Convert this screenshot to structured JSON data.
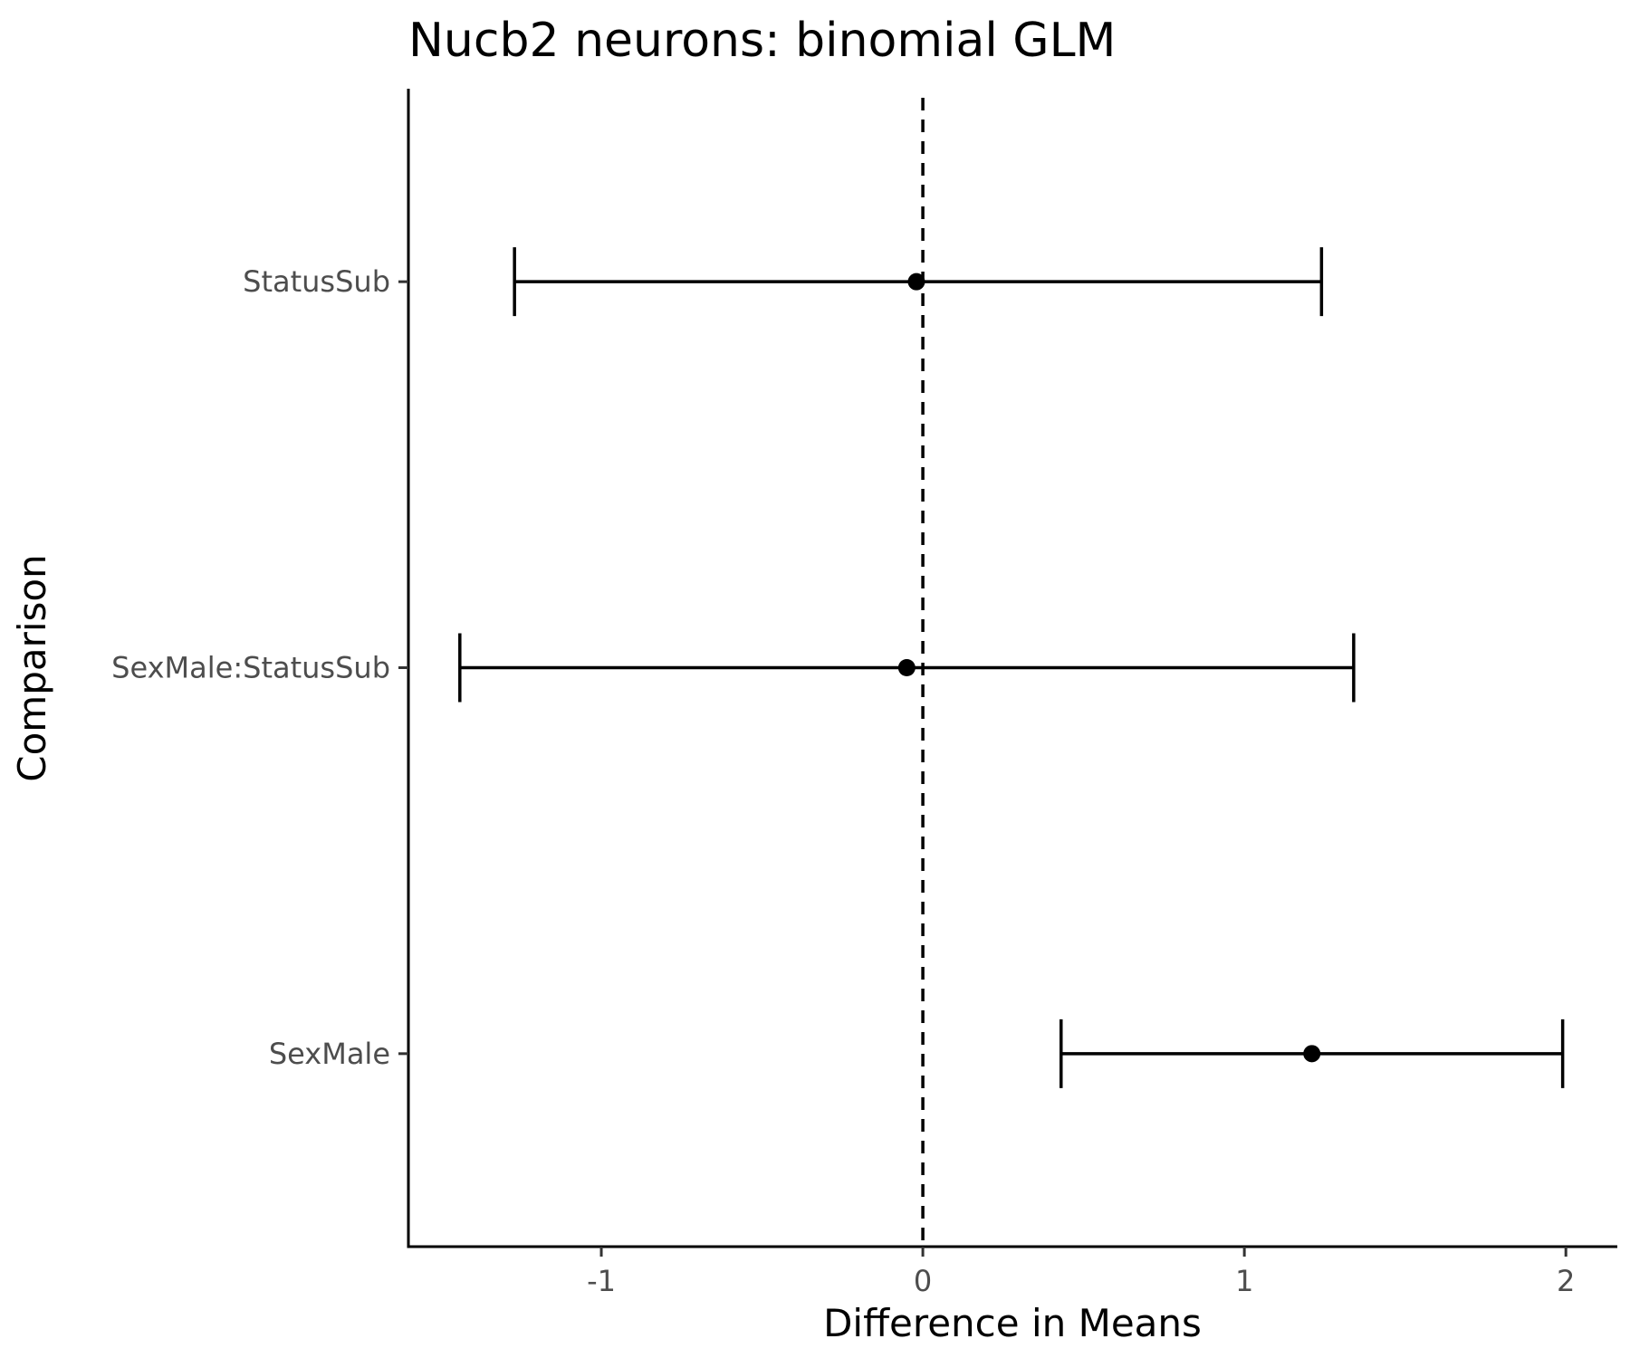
{
  "chart_data": {
    "type": "errorbar",
    "orientation": "horizontal",
    "title": "Nucb2 neurons: binomial GLM",
    "xlabel": "Difference in Means",
    "ylabel": "Comparison",
    "xlim": [
      -1.6,
      2.16
    ],
    "x_ticks": [
      {
        "value": -1,
        "label": "-1"
      },
      {
        "value": 0,
        "label": "0"
      },
      {
        "value": 1,
        "label": "1"
      },
      {
        "value": 2,
        "label": "2"
      }
    ],
    "reference_line": {
      "x": 0,
      "style": "dashed"
    },
    "grid": false,
    "categories": [
      "StatusSub",
      "SexMale:StatusSub",
      "SexMale"
    ],
    "estimates": [
      -0.02,
      -0.05,
      1.21
    ],
    "lower": [
      -1.27,
      -1.44,
      0.43
    ],
    "upper": [
      1.24,
      1.34,
      1.99
    ]
  }
}
